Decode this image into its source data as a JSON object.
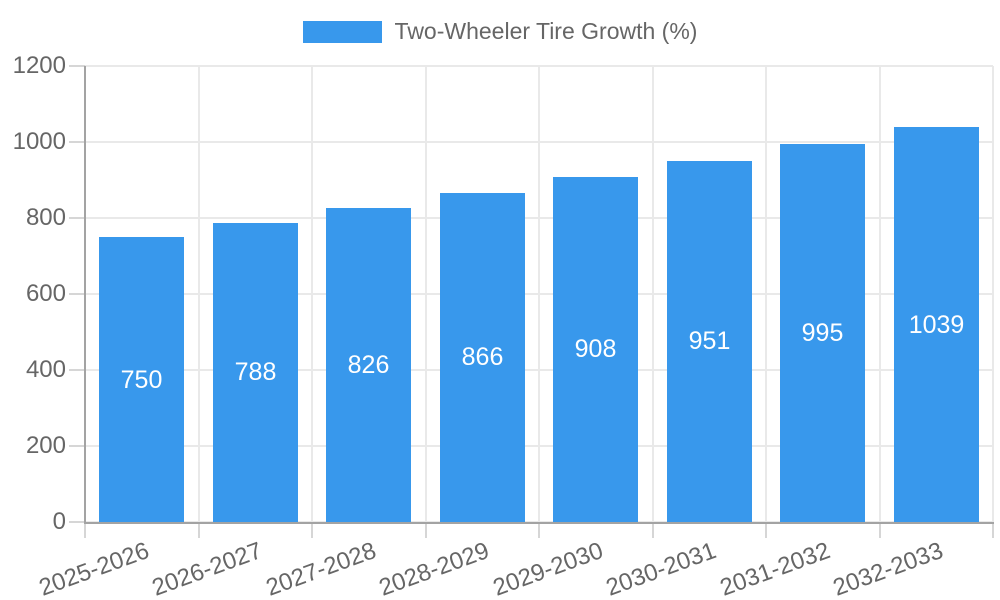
{
  "chart_data": {
    "type": "bar",
    "title": "",
    "legend_label": "Two-Wheeler Tire Growth (%)",
    "legend_position": "top",
    "categories": [
      "2025-2026",
      "2026-2027",
      "2027-2028",
      "2028-2029",
      "2029-2030",
      "2030-2031",
      "2031-2032",
      "2032-2033"
    ],
    "values": [
      750,
      788,
      826,
      866,
      908,
      951,
      995,
      1039
    ],
    "y_ticks": [
      0,
      200,
      400,
      600,
      800,
      1000,
      1200
    ],
    "ylim": [
      0,
      1200
    ],
    "xlabel": "",
    "ylabel": "",
    "grid": true,
    "bar_color": "#3898ec",
    "value_label_color": "#ffffff",
    "axis_text_color": "#666666"
  }
}
